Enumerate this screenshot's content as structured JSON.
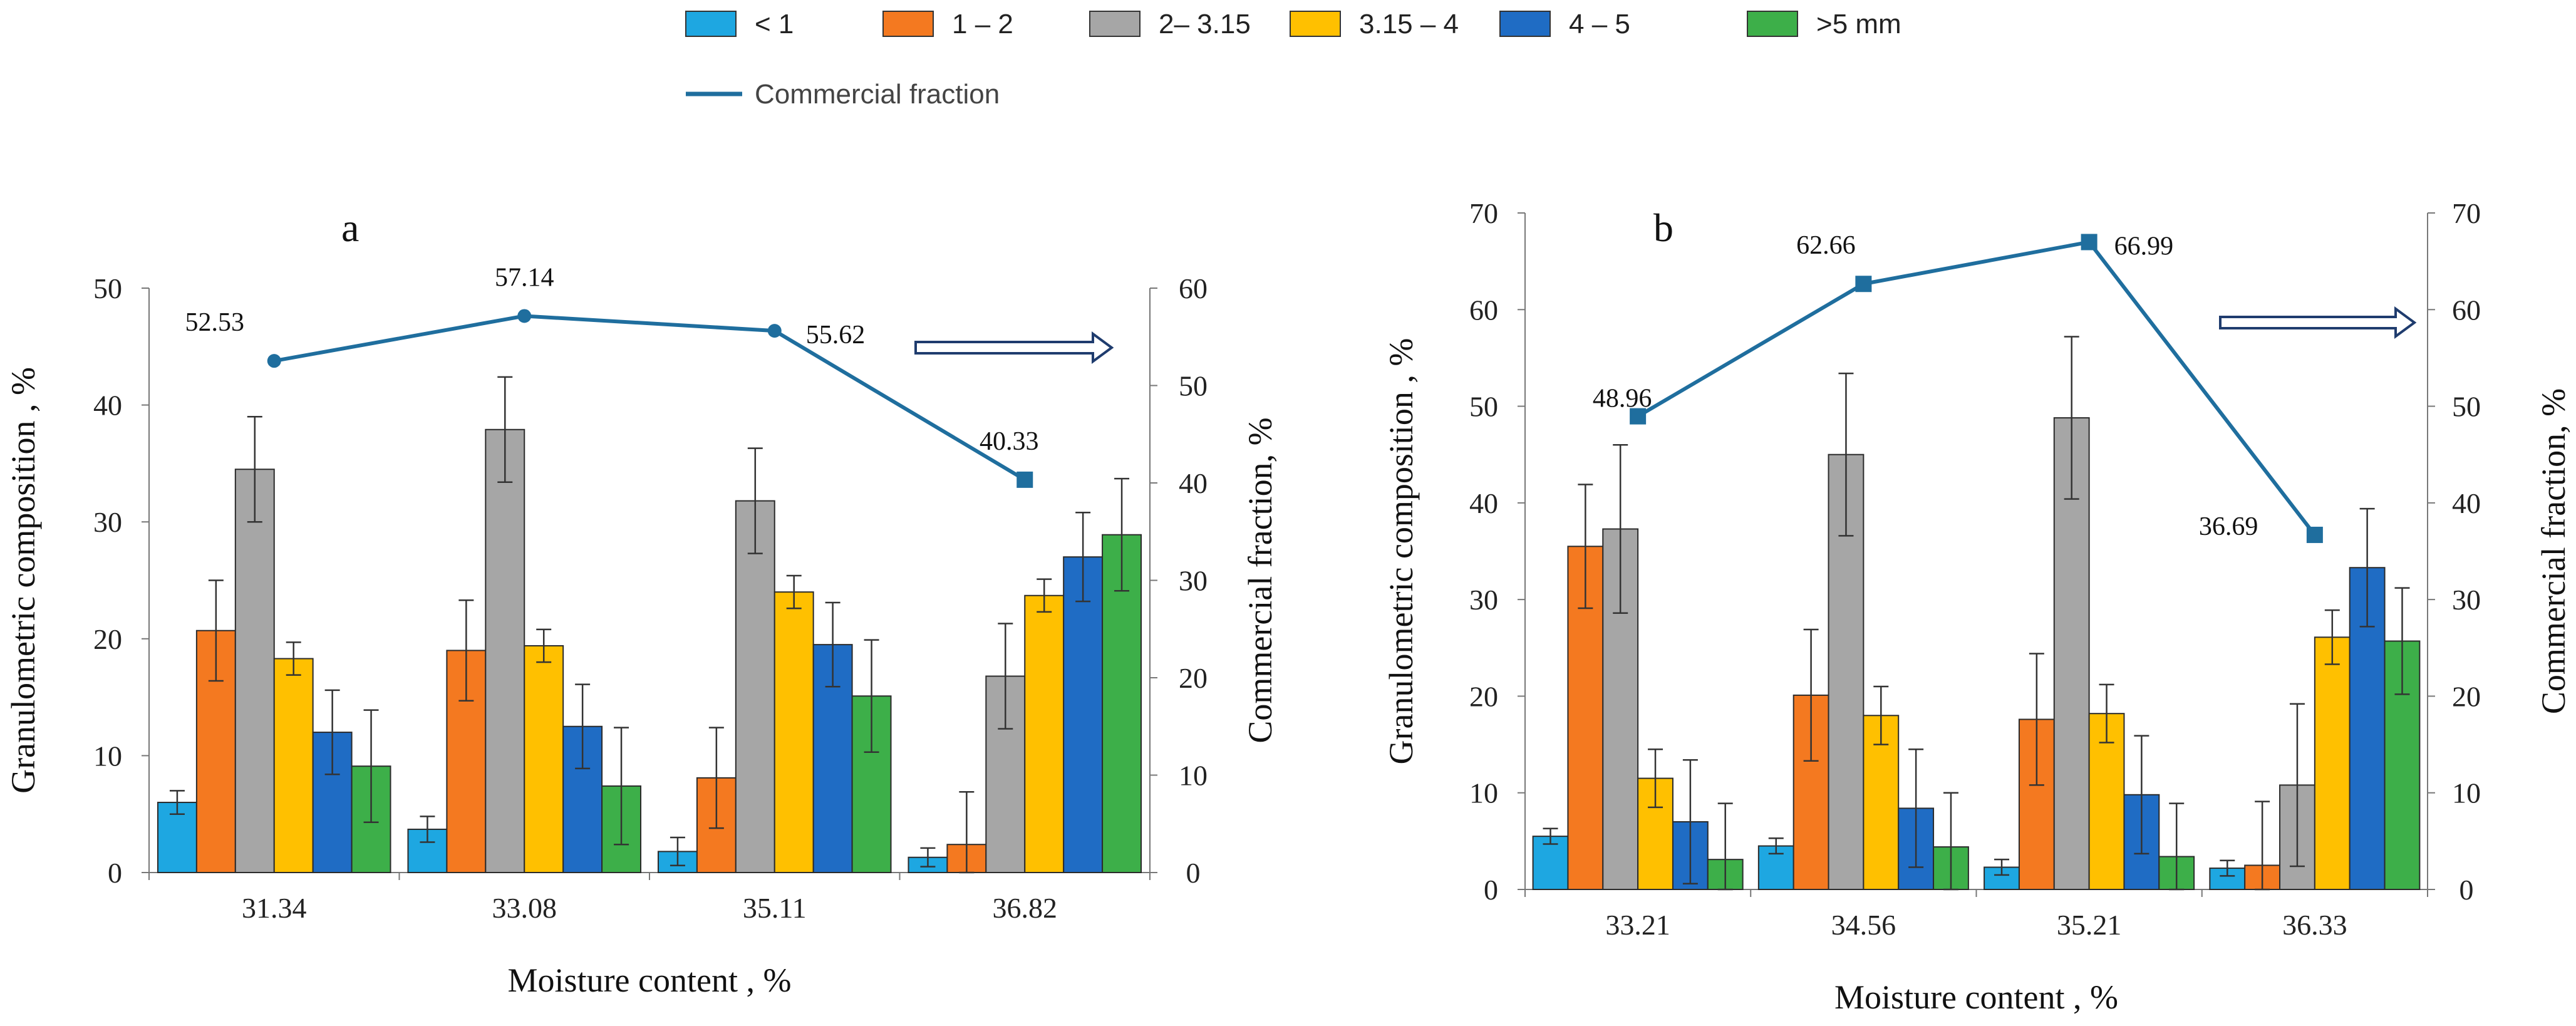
{
  "legend": {
    "items": [
      {
        "label": "< 1",
        "color": "#1ea7e1"
      },
      {
        "label": "1 – 2",
        "color": "#f47920"
      },
      {
        "label": "2– 3.15",
        "color": "#a6a6a6"
      },
      {
        "label": "3.15 – 4",
        "color": "#ffc000"
      },
      {
        "label": "4 – 5",
        "color": "#1f6cc4"
      },
      {
        "label": ">5 mm",
        "color": "#3daf49"
      }
    ],
    "line_label": "Commercial fraction",
    "line_color": "#1f6e9e"
  },
  "chart_data": [
    {
      "type": "bar",
      "panel_label": "a",
      "categories": [
        "31.34",
        "33.08",
        "35.11",
        "36.82"
      ],
      "series": [
        {
          "name": "< 1",
          "values": [
            6,
            3.7,
            1.8,
            1.3
          ],
          "errors": [
            1,
            1.1,
            1.2,
            0.8
          ]
        },
        {
          "name": "1 – 2",
          "values": [
            20.7,
            19,
            8.1,
            2.4
          ],
          "errors": [
            4.3,
            4.3,
            4.3,
            4.5
          ]
        },
        {
          "name": "2– 3.15",
          "values": [
            34.5,
            37.9,
            31.8,
            16.8
          ],
          "errors": [
            4.5,
            4.5,
            4.5,
            4.5
          ]
        },
        {
          "name": "3.15 – 4",
          "values": [
            18.3,
            19.4,
            24,
            23.7
          ],
          "errors": [
            1.4,
            1.4,
            1.4,
            1.4
          ]
        },
        {
          "name": "4 – 5",
          "values": [
            12,
            12.5,
            19.5,
            27
          ],
          "errors": [
            3.6,
            3.6,
            3.6,
            3.8
          ]
        },
        {
          "name": ">5 mm",
          "values": [
            9.1,
            7.4,
            15.1,
            28.9
          ],
          "errors": [
            4.8,
            5,
            4.8,
            4.8
          ]
        }
      ],
      "line": {
        "name": "Commercial fraction",
        "values": [
          52.53,
          57.14,
          55.62,
          40.33
        ],
        "labels": [
          "52.53",
          "57.14",
          "55.62",
          "40.33"
        ]
      },
      "xlabel": "Moisture content , %",
      "ylabel": "Granulometric composition , %",
      "y2label": "Commercial fraction, %",
      "ylim": [
        0,
        50
      ],
      "y2lim": [
        0,
        60
      ],
      "yticks": [
        "0",
        "10",
        "20",
        "30",
        "40",
        "50"
      ],
      "y2ticks": [
        "0",
        "10",
        "20",
        "30",
        "40",
        "50",
        "60"
      ]
    },
    {
      "type": "bar",
      "panel_label": "b",
      "categories": [
        "33.21",
        "34.56",
        "35.21",
        "36.33"
      ],
      "series": [
        {
          "name": "< 1",
          "values": [
            5.5,
            4.5,
            2.3,
            2.2
          ],
          "errors": [
            0.8,
            0.8,
            0.8,
            0.8
          ]
        },
        {
          "name": "1 – 2",
          "values": [
            35.5,
            20.1,
            17.6,
            2.5
          ],
          "errors": [
            6.4,
            6.8,
            6.8,
            6.6
          ]
        },
        {
          "name": "2– 3.15",
          "values": [
            37.3,
            45,
            48.8,
            10.8
          ],
          "errors": [
            8.7,
            8.4,
            8.4,
            8.4
          ]
        },
        {
          "name": "3.15 – 4",
          "values": [
            11.5,
            18,
            18.2,
            26.1
          ],
          "errors": [
            3,
            3,
            3,
            2.8
          ]
        },
        {
          "name": "4 – 5",
          "values": [
            7,
            8.4,
            9.8,
            33.3
          ],
          "errors": [
            6.4,
            6.1,
            6.1,
            6.1
          ]
        },
        {
          "name": ">5 mm",
          "values": [
            3.1,
            4.4,
            3.4,
            25.7
          ],
          "errors": [
            5.8,
            5.6,
            5.5,
            5.5
          ]
        }
      ],
      "line": {
        "name": "Commercial fraction",
        "values": [
          48.96,
          62.66,
          66.99,
          36.69
        ],
        "labels": [
          "48.96",
          "62.66",
          "66.99",
          "36.69"
        ]
      },
      "xlabel": "Moisture content , %",
      "ylabel": "Granulometric composition , %",
      "y2label": "Commercial fraction, %",
      "ylim": [
        0,
        70
      ],
      "y2lim": [
        0,
        70
      ],
      "yticks": [
        "0",
        "10",
        "20",
        "30",
        "40",
        "50",
        "60",
        "70"
      ],
      "y2ticks": [
        "0",
        "10",
        "20",
        "30",
        "40",
        "50",
        "60",
        "70"
      ]
    }
  ]
}
